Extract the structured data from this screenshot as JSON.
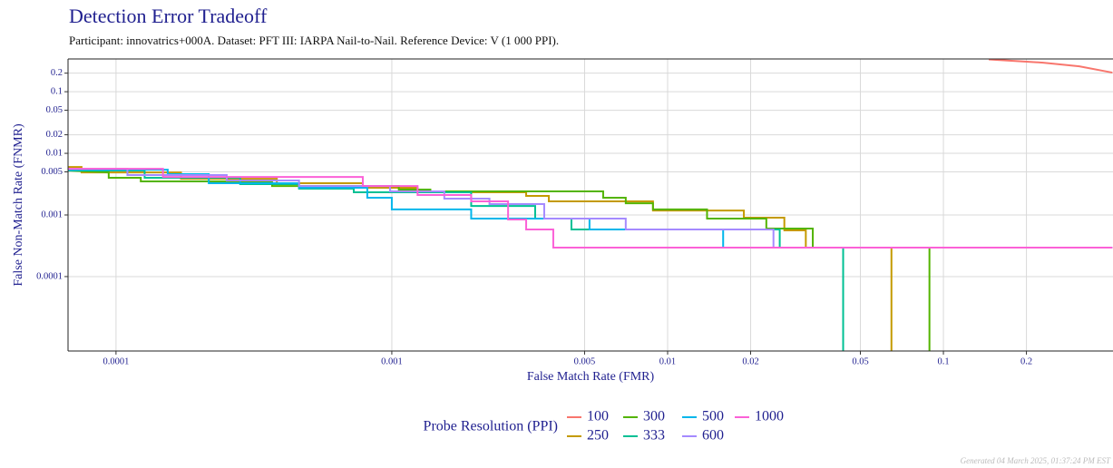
{
  "chart_data": {
    "type": "line",
    "title": "Detection Error Tradeoff",
    "subtitle": "Participant: innovatrics+000A. Dataset: PFT III: IARPA Nail-to-Nail. Reference Device: V (1 000 PPI).",
    "x_label": "False Match Rate (FMR)",
    "y_label": "False Non-Match Rate (FNMR)",
    "legend_title": "Probe Resolution (PPI)",
    "footer": "Generated 04 March 2025, 01:37:24 PM EST",
    "x_scale": "log",
    "y_scale": "log",
    "grid": true,
    "legend_position": "bottom",
    "xlim": [
      6.7e-05,
      0.412
    ],
    "ylim": [
      6.2e-06,
      0.34
    ],
    "xticks": [
      0.0001,
      0.001,
      0.005,
      0.01,
      0.02,
      0.05,
      0.1,
      0.2
    ],
    "yticks": [
      0.2,
      0.1,
      0.05,
      0.02,
      0.01,
      0.005,
      0.001,
      0.0001
    ],
    "series": [
      {
        "name": "100",
        "color": "#F8766D",
        "x": [
          0.146,
          0.23,
          0.311,
          0.41
        ],
        "values": [
          0.335,
          0.296,
          0.258,
          0.204
        ]
      },
      {
        "name": "250",
        "color": "#C49A00",
        "x": [
          6.7e-05,
          7.5e-05,
          7.5e-05,
          0.000172,
          0.000172,
          0.000383,
          0.000383,
          0.000785,
          0.000785,
          0.00124,
          0.00124,
          0.00307,
          0.00307,
          0.00371,
          0.00371,
          0.00885,
          0.00885,
          0.0189,
          0.0189,
          0.0265,
          0.0265,
          0.0317,
          0.0317,
          0.0648,
          0.0648
        ],
        "values": [
          0.00601,
          0.00601,
          0.0049,
          0.0049,
          0.00387,
          0.00387,
          0.00327,
          0.00327,
          0.00276,
          0.00276,
          0.00233,
          0.00233,
          0.00204,
          0.00204,
          0.00166,
          0.00166,
          0.00118,
          0.00118,
          0.000903,
          0.000903,
          0.000562,
          0.000562,
          0.000295,
          0.000295,
          1e-06
        ]
      },
      {
        "name": "300",
        "color": "#53B400",
        "x": [
          6.7e-05,
          9.41e-05,
          9.41e-05,
          0.000123,
          0.000123,
          0.000368,
          0.000368,
          0.00106,
          0.00106,
          0.00138,
          0.00138,
          0.00584,
          0.00584,
          0.00705,
          0.00705,
          0.00885,
          0.00885,
          0.0139,
          0.0139,
          0.0228,
          0.0228,
          0.0336,
          0.0336,
          0.089,
          0.089
        ],
        "values": [
          0.00526,
          0.0049,
          0.00401,
          0.00401,
          0.0035,
          0.0035,
          0.00295,
          0.00295,
          0.00258,
          0.00258,
          0.00241,
          0.00241,
          0.0019,
          0.0019,
          0.00155,
          0.00155,
          0.00123,
          0.00123,
          0.000873,
          0.000873,
          0.000601,
          0.000601,
          0.000295,
          0.000295,
          1e-06
        ]
      },
      {
        "name": "333",
        "color": "#00C094",
        "x": [
          6.7e-05,
          0.000127,
          0.000127,
          0.000282,
          0.000282,
          0.000461,
          0.000461,
          0.000728,
          0.000728,
          0.00194,
          0.00194,
          0.00331,
          0.00331,
          0.00448,
          0.00448,
          0.0255,
          0.0255,
          0.0433,
          0.0433
        ],
        "values": [
          0.00526,
          0.00526,
          0.00401,
          0.00401,
          0.00316,
          0.00316,
          0.00267,
          0.00267,
          0.00233,
          0.00233,
          0.0014,
          0.0014,
          0.000873,
          0.000873,
          0.000582,
          0.000582,
          0.000295,
          0.000295,
          1e-06
        ]
      },
      {
        "name": "500",
        "color": "#00B6EB",
        "x": [
          6.7e-05,
          0.000154,
          0.000154,
          0.000217,
          0.000217,
          0.000461,
          0.000461,
          0.000815,
          0.000815,
          0.001,
          0.001,
          0.00194,
          0.00194,
          0.00521,
          0.00521,
          0.0159,
          0.0159,
          0.41
        ],
        "values": [
          0.00543,
          0.00543,
          0.00459,
          0.00459,
          0.00327,
          0.00327,
          0.00276,
          0.00276,
          0.0019,
          0.0019,
          0.00123,
          0.00123,
          0.000873,
          0.000873,
          0.000582,
          0.000582,
          0.000295,
          0.000295
        ]
      },
      {
        "name": "600",
        "color": "#A58AFF",
        "x": [
          6.7e-05,
          0.00011,
          0.00011,
          0.000252,
          0.000252,
          0.000461,
          0.000461,
          0.000985,
          0.000985,
          0.00155,
          0.00155,
          0.00226,
          0.00226,
          0.00357,
          0.00357,
          0.00705,
          0.00705,
          0.0242,
          0.0242,
          0.41
        ],
        "values": [
          0.0056,
          0.0056,
          0.00444,
          0.00444,
          0.00362,
          0.00362,
          0.00295,
          0.00295,
          0.00241,
          0.00241,
          0.00184,
          0.00184,
          0.0015,
          0.0015,
          0.000873,
          0.000873,
          0.000582,
          0.000582,
          0.000295,
          0.000295
        ]
      },
      {
        "name": "1000",
        "color": "#FB61D7",
        "x": [
          6.7e-05,
          0.000148,
          0.000148,
          0.000785,
          0.000785,
          0.00124,
          0.00124,
          0.00194,
          0.00194,
          0.00264,
          0.00264,
          0.00307,
          0.00307,
          0.00385,
          0.00385,
          0.41
        ],
        "values": [
          0.0056,
          0.0056,
          0.00414,
          0.00414,
          0.00295,
          0.00295,
          0.00211,
          0.00211,
          0.00166,
          0.00166,
          0.000844,
          0.000844,
          0.000582,
          0.000582,
          0.000295,
          0.000295
        ]
      }
    ]
  }
}
